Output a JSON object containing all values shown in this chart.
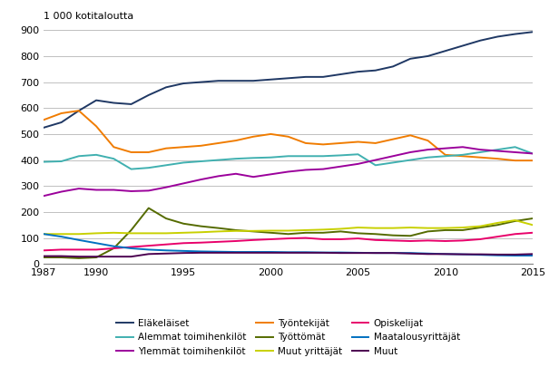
{
  "years": [
    1987,
    1988,
    1989,
    1990,
    1991,
    1992,
    1993,
    1994,
    1995,
    1996,
    1997,
    1998,
    1999,
    2000,
    2001,
    2002,
    2003,
    2004,
    2005,
    2006,
    2007,
    2008,
    2009,
    2010,
    2011,
    2012,
    2013,
    2014,
    2015
  ],
  "series": {
    "Eläkeläiset": {
      "color": "#1f3864",
      "values": [
        525,
        545,
        590,
        630,
        620,
        615,
        650,
        680,
        695,
        700,
        705,
        705,
        705,
        710,
        715,
        720,
        720,
        730,
        740,
        745,
        760,
        790,
        800,
        820,
        840,
        860,
        875,
        885,
        893
      ]
    },
    "Työntekijät": {
      "color": "#f07c00",
      "values": [
        555,
        580,
        590,
        530,
        450,
        430,
        430,
        445,
        450,
        455,
        465,
        475,
        490,
        500,
        490,
        465,
        460,
        465,
        470,
        465,
        480,
        495,
        475,
        420,
        415,
        410,
        405,
        398,
        398
      ]
    },
    "Alemmat toimihenkilöt": {
      "color": "#40b0b0",
      "values": [
        393,
        395,
        415,
        420,
        405,
        365,
        370,
        380,
        390,
        395,
        400,
        405,
        408,
        410,
        415,
        415,
        415,
        418,
        422,
        380,
        390,
        400,
        410,
        415,
        420,
        430,
        440,
        450,
        425
      ]
    },
    "Ylemmät toimihenkilöt": {
      "color": "#9b009b",
      "values": [
        262,
        278,
        290,
        285,
        285,
        280,
        282,
        295,
        310,
        325,
        338,
        347,
        335,
        345,
        355,
        362,
        365,
        375,
        385,
        400,
        415,
        430,
        440,
        445,
        450,
        440,
        435,
        430,
        425
      ]
    },
    "Työttömät": {
      "color": "#556b00",
      "values": [
        25,
        25,
        22,
        25,
        60,
        130,
        215,
        175,
        155,
        145,
        138,
        130,
        125,
        120,
        115,
        120,
        120,
        125,
        118,
        115,
        110,
        108,
        125,
        130,
        130,
        140,
        150,
        165,
        175
      ]
    },
    "Muut yrittäjät": {
      "color": "#c8d000",
      "values": [
        115,
        115,
        115,
        118,
        120,
        118,
        118,
        118,
        120,
        122,
        125,
        127,
        127,
        128,
        128,
        130,
        132,
        135,
        140,
        138,
        138,
        140,
        138,
        138,
        140,
        145,
        158,
        168,
        150
      ]
    },
    "Opiskelijat": {
      "color": "#e8006a",
      "values": [
        52,
        55,
        55,
        55,
        60,
        65,
        70,
        75,
        80,
        82,
        85,
        88,
        92,
        95,
        98,
        100,
        95,
        95,
        98,
        92,
        90,
        88,
        90,
        88,
        90,
        95,
        105,
        115,
        120
      ]
    },
    "Maatalousyrittäjät": {
      "color": "#0070c0",
      "values": [
        115,
        105,
        92,
        80,
        68,
        60,
        55,
        52,
        50,
        48,
        47,
        46,
        46,
        46,
        45,
        45,
        44,
        44,
        43,
        42,
        42,
        42,
        40,
        38,
        37,
        35,
        33,
        32,
        32
      ]
    },
    "Muut": {
      "color": "#4b0050",
      "values": [
        30,
        30,
        28,
        28,
        28,
        28,
        38,
        40,
        42,
        43,
        43,
        43,
        43,
        43,
        43,
        43,
        43,
        42,
        42,
        42,
        42,
        40,
        38,
        38,
        37,
        37,
        36,
        36,
        38
      ]
    }
  },
  "ylabel": "1 000 kotitaloutta",
  "ylim": [
    0,
    900
  ],
  "yticks": [
    0,
    100,
    200,
    300,
    400,
    500,
    600,
    700,
    800,
    900
  ],
  "xlim": [
    1987,
    2015
  ],
  "xticks": [
    1987,
    1990,
    1995,
    2000,
    2005,
    2010,
    2015
  ],
  "legend_order": [
    "Eläkeläiset",
    "Alemmat toimihenkilöt",
    "Ylemmät toimihenkilöt",
    "Työntekijät",
    "Työttömät",
    "Muut yrittäjät",
    "Opiskelijat",
    "Maatalousyrittäjät",
    "Muut"
  ],
  "background_color": "#ffffff",
  "grid_color": "#c0c0c0"
}
